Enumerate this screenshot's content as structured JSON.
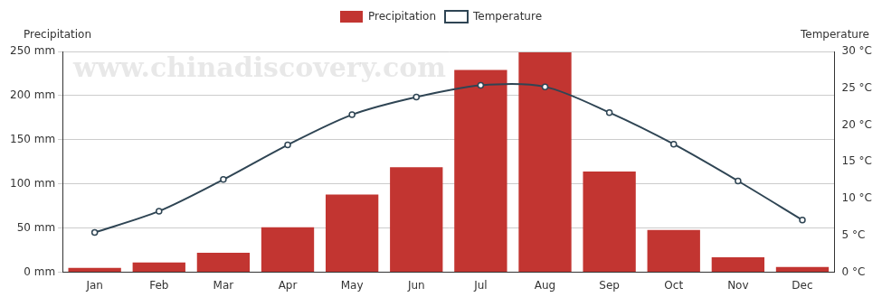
{
  "chart_data": {
    "type": "bar",
    "categories": [
      "Jan",
      "Feb",
      "Mar",
      "Apr",
      "May",
      "Jun",
      "Jul",
      "Aug",
      "Sep",
      "Oct",
      "Nov",
      "Dec"
    ],
    "ylabel": "Precipitation",
    "y2label": "Temperature",
    "annotations": [
      "www.chinadiscovery.com"
    ],
    "series": [
      {
        "name": "Precipitation",
        "type": "bar",
        "color": "#c23531",
        "values": [
          5,
          11,
          22,
          51,
          88,
          119,
          229,
          249,
          114,
          48,
          17,
          6
        ]
      },
      {
        "name": "Temperature",
        "type": "line",
        "axis": "y2",
        "color": "#2f4554",
        "marker": "circle",
        "values": [
          5.4,
          8.3,
          12.6,
          17.3,
          21.4,
          23.8,
          25.4,
          25.2,
          21.7,
          17.4,
          12.4,
          7.1
        ]
      }
    ],
    "ylim": [
      0,
      250
    ],
    "yticks": [
      {
        "value": 0,
        "label": "0 mm"
      },
      {
        "value": 50,
        "label": "50 mm"
      },
      {
        "value": 100,
        "label": "100 mm"
      },
      {
        "value": 150,
        "label": "150 mm"
      },
      {
        "value": 200,
        "label": "200 mm"
      },
      {
        "value": 250,
        "label": "250 mm"
      }
    ],
    "y2lim": [
      0,
      30
    ],
    "y2ticks": [
      {
        "value": 0,
        "label": "0 °C"
      },
      {
        "value": 5,
        "label": "5 °C"
      },
      {
        "value": 10,
        "label": "10 °C"
      },
      {
        "value": 15,
        "label": "15 °C"
      },
      {
        "value": 20,
        "label": "20 °C"
      },
      {
        "value": 25,
        "label": "25 °C"
      },
      {
        "value": 30,
        "label": "30 °C"
      }
    ],
    "grid": true,
    "legend": "top"
  }
}
